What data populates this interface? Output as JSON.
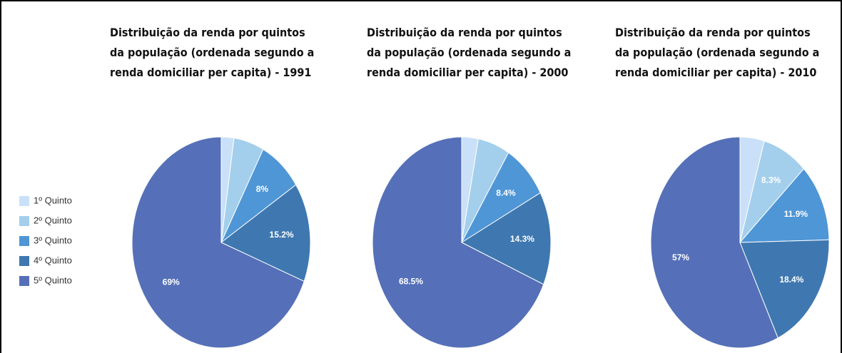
{
  "chart_data": [
    {
      "type": "pie",
      "title": "Distribuição da renda por quintos da população (ordenada segundo a renda domiciliar per capita)  - 1991",
      "categories": [
        "1º Quinto",
        "2º Quinto",
        "3º Quinto",
        "4º Quinto",
        "5º Quinto"
      ],
      "values": [
        2.3,
        5.5,
        8,
        15.2,
        69
      ],
      "value_labels": [
        null,
        null,
        "8%",
        "15.2%",
        "69%"
      ],
      "colors": [
        "#c9e0f8",
        "#a3cfec",
        "#4f96d6",
        "#3f78b0",
        "#5570b8"
      ]
    },
    {
      "type": "pie",
      "title": "Distribuição da renda por quintos da população (ordenada segundo a renda domiciliar per capita)  - 2000",
      "categories": [
        "1º Quinto",
        "2º Quinto",
        "3º Quinto",
        "4º Quinto",
        "5º Quinto"
      ],
      "values": [
        3,
        5.8,
        8.4,
        14.3,
        68.5
      ],
      "value_labels": [
        null,
        null,
        "8.4%",
        "14.3%",
        "68.5%"
      ],
      "colors": [
        "#c9e0f8",
        "#a3cfec",
        "#4f96d6",
        "#3f78b0",
        "#5570b8"
      ]
    },
    {
      "type": "pie",
      "title": "Distribuição da renda por quintos da população (ordenada segundo a renda domiciliar per capita)  - 2010",
      "categories": [
        "1º Quinto",
        "2º Quinto",
        "3º Quinto",
        "4º Quinto",
        "5º Quinto"
      ],
      "values": [
        4.4,
        8.3,
        11.9,
        18.4,
        57
      ],
      "value_labels": [
        null,
        "8.3%",
        "11.9%",
        "18.4%",
        "57%"
      ],
      "colors": [
        "#c9e0f8",
        "#a3cfec",
        "#4f96d6",
        "#3f78b0",
        "#5570b8"
      ]
    }
  ]
}
